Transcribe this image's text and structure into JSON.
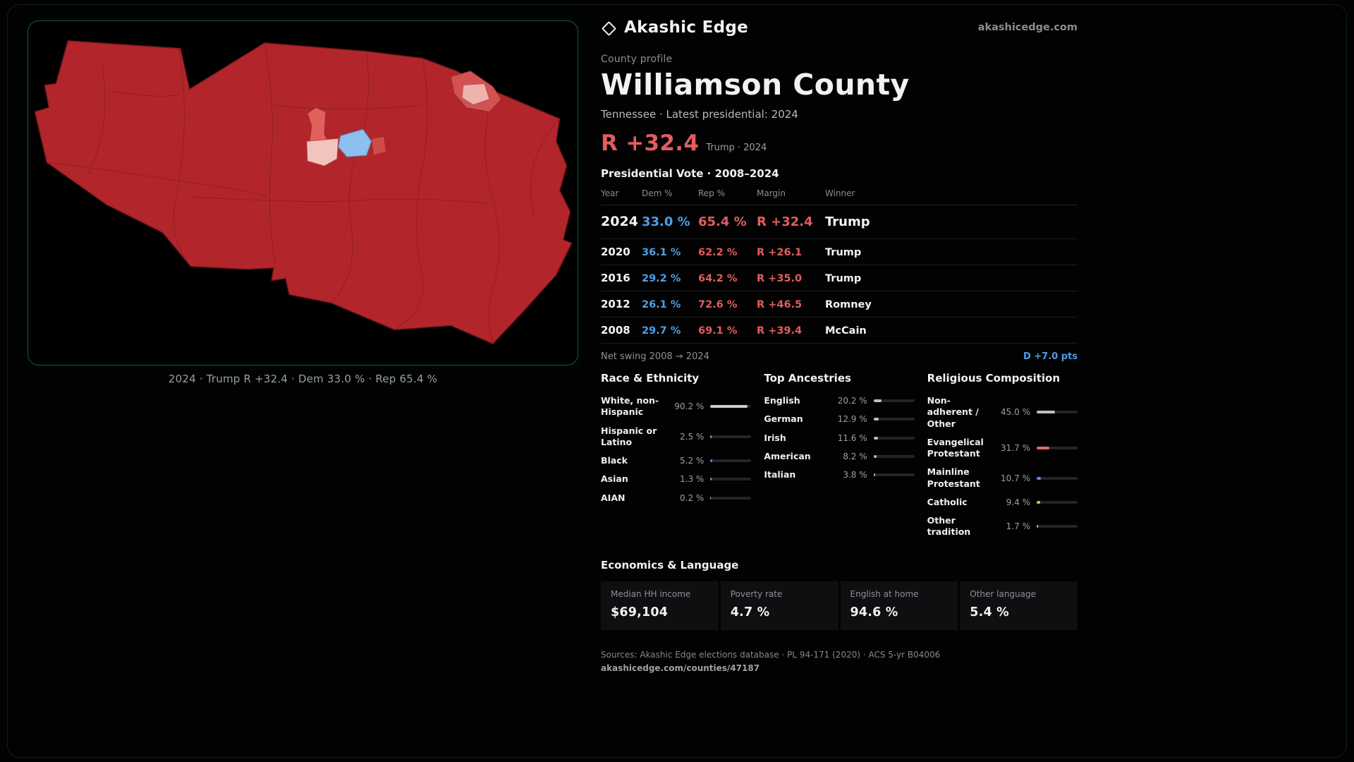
{
  "colors": {
    "accent": "#49c5c1",
    "dem": "#4f9ee4",
    "rep": "#e25d5f",
    "map-red": "#b2262b",
    "map-blue": "#8cc0ee"
  },
  "brand": {
    "name": "Akashic Edge",
    "domain": "akashicedge.com"
  },
  "map": {
    "caption": "2024 · Trump R +32.4 · Dem 33.0 % · Rep 65.4 %"
  },
  "profile": {
    "kicker": "County profile",
    "title": "Williamson County",
    "subtitle": "Tennessee · Latest presidential: 2024",
    "headline_margin": "R +32.4",
    "headline_note": "Trump · 2024"
  },
  "vote_table": {
    "title": "Presidential Vote · 2008–2024",
    "columns": [
      "Year",
      "Dem %",
      "Rep %",
      "Margin",
      "Winner"
    ],
    "rows": [
      {
        "year": "2024",
        "dem": "33.0 %",
        "rep": "65.4 %",
        "margin": "R +32.4",
        "winner": "Trump"
      },
      {
        "year": "2020",
        "dem": "36.1 %",
        "rep": "62.2 %",
        "margin": "R +26.1",
        "winner": "Trump"
      },
      {
        "year": "2016",
        "dem": "29.2 %",
        "rep": "64.2 %",
        "margin": "R +35.0",
        "winner": "Trump"
      },
      {
        "year": "2012",
        "dem": "26.1 %",
        "rep": "72.6 %",
        "margin": "R +46.5",
        "winner": "Romney"
      },
      {
        "year": "2008",
        "dem": "29.7 %",
        "rep": "69.1 %",
        "margin": "R +39.4",
        "winner": "McCain"
      }
    ],
    "net_swing_label": "Net swing 2008 → 2024",
    "net_swing_value": "D +7.0 pts"
  },
  "demographics": {
    "race": {
      "title": "Race & Ethnicity",
      "rows": [
        {
          "label": "White, non-Hispanic",
          "value": "90.2 %",
          "pct": 90.2,
          "color": "#c9ced6"
        },
        {
          "label": "Hispanic or Latino",
          "value": "2.5 %",
          "pct": 2.5,
          "color": "#e2a43e"
        },
        {
          "label": "Black",
          "value": "5.2 %",
          "pct": 5.2,
          "color": "#7b74f0"
        },
        {
          "label": "Asian",
          "value": "1.3 %",
          "pct": 1.3,
          "color": "#45c4c9"
        },
        {
          "label": "AIAN",
          "value": "0.2 %",
          "pct": 0.2,
          "color": "#c9ced6"
        }
      ]
    },
    "ancestries": {
      "title": "Top Ancestries",
      "rows": [
        {
          "label": "English",
          "value": "20.2 %",
          "pct": 20.2,
          "color": "#b9c1ca"
        },
        {
          "label": "German",
          "value": "12.9 %",
          "pct": 12.9,
          "color": "#b9c1ca"
        },
        {
          "label": "Irish",
          "value": "11.6 %",
          "pct": 11.6,
          "color": "#b9c1ca"
        },
        {
          "label": "American",
          "value": "8.2 %",
          "pct": 8.2,
          "color": "#b9c1ca"
        },
        {
          "label": "Italian",
          "value": "3.8 %",
          "pct": 3.8,
          "color": "#b9c1ca"
        }
      ]
    },
    "religion": {
      "title": "Religious Composition",
      "rows": [
        {
          "label": "Non-adherent / Other",
          "value": "45.0 %",
          "pct": 45.0,
          "color": "#b9c1ca"
        },
        {
          "label": "Evangelical Protestant",
          "value": "31.7 %",
          "pct": 31.7,
          "color": "#e16a6c"
        },
        {
          "label": "Mainline Protestant",
          "value": "10.7 %",
          "pct": 10.7,
          "color": "#5b8ff0"
        },
        {
          "label": "Catholic",
          "value": "9.4 %",
          "pct": 9.4,
          "color": "#e5c24c"
        },
        {
          "label": "Other tradition",
          "value": "1.7 %",
          "pct": 1.7,
          "color": "#b9c1ca"
        }
      ]
    }
  },
  "economics": {
    "title": "Economics & Language",
    "stats": [
      {
        "label": "Median HH income",
        "value": "$69,104"
      },
      {
        "label": "Poverty rate",
        "value": "4.7 %"
      },
      {
        "label": "English at home",
        "value": "94.6 %"
      },
      {
        "label": "Other language",
        "value": "5.4 %"
      }
    ]
  },
  "footer": {
    "sources": "Sources: Akashic Edge elections database · PL 94-171 (2020) · ACS 5-yr B04006",
    "permalink": "akashicedge.com/counties/47187"
  }
}
